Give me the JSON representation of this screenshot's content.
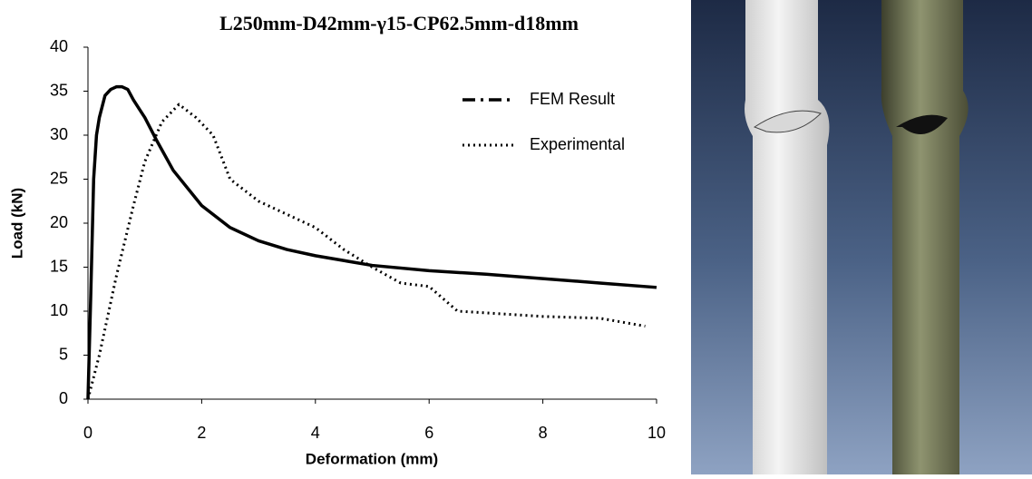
{
  "chart_data": {
    "type": "line",
    "title": "L250mm-D42mm-γ15-CP62.5mm-d18mm",
    "xlabel": "Deformation (mm)",
    "ylabel": "Load (kN)",
    "xlim": [
      0,
      10
    ],
    "xticks": [
      0,
      2,
      4,
      6,
      8,
      10
    ],
    "ylim": [
      0,
      40
    ],
    "yticks": [
      0,
      5,
      10,
      15,
      20,
      25,
      30,
      35,
      40
    ],
    "legend": "upper right",
    "series": [
      {
        "name": "FEM Result",
        "color": "#000000",
        "x": [
          0,
          0.05,
          0.1,
          0.15,
          0.2,
          0.3,
          0.4,
          0.5,
          0.6,
          0.7,
          0.8,
          0.9,
          1,
          1.2,
          1.5,
          2,
          2.5,
          3,
          3.5,
          4,
          5,
          6,
          7,
          8,
          9,
          10
        ],
        "values": [
          0,
          12,
          25,
          30,
          32,
          34.5,
          35.2,
          35.5,
          35.5,
          35.2,
          34,
          33,
          32,
          29.5,
          26,
          22,
          19.5,
          18,
          17,
          16.3,
          15.2,
          14.6,
          14.2,
          13.7,
          13.2,
          12.7
        ]
      },
      {
        "name": "Experimental",
        "color": "#000000",
        "x": [
          0,
          0.2,
          0.5,
          0.8,
          1,
          1.3,
          1.6,
          1.9,
          2.2,
          2.5,
          3,
          3.5,
          4,
          4.5,
          5,
          5.5,
          6,
          6.5,
          7,
          8,
          9,
          9.8
        ],
        "values": [
          0,
          5,
          14,
          22,
          27,
          31.5,
          33.5,
          32,
          30,
          25,
          22.5,
          21,
          19.5,
          17,
          15,
          13.2,
          12.8,
          10,
          9.8,
          9.4,
          9.2,
          8.3
        ]
      }
    ]
  }
}
